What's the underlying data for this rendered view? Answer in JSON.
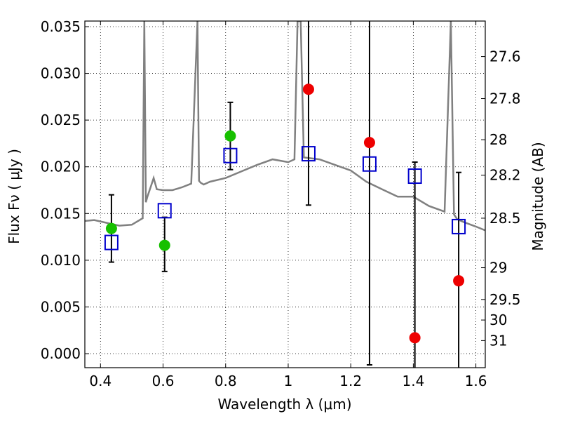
{
  "chart_data": {
    "type": "scatter",
    "xlabel": "Wavelength  λ (μm)",
    "ylabel": "Flux  Fν  ( μJy )",
    "ylabel_right": "Magnitude (AB)",
    "xlim": [
      0.35,
      1.63
    ],
    "ylim": [
      -0.0015,
      0.0356
    ],
    "grid": true,
    "x_ticks": [
      {
        "value": 0.4,
        "label": "0.4"
      },
      {
        "value": 0.6,
        "label": "0.6"
      },
      {
        "value": 0.8,
        "label": "0.8"
      },
      {
        "value": 1.0,
        "label": "1"
      },
      {
        "value": 1.2,
        "label": "1.2"
      },
      {
        "value": 1.4,
        "label": "1.4"
      },
      {
        "value": 1.6,
        "label": "1.6"
      }
    ],
    "y_ticks": [
      {
        "value": 0.0,
        "label": "0.000"
      },
      {
        "value": 0.005,
        "label": "0.005"
      },
      {
        "value": 0.01,
        "label": "0.010"
      },
      {
        "value": 0.015,
        "label": "0.015"
      },
      {
        "value": 0.02,
        "label": "0.020"
      },
      {
        "value": 0.025,
        "label": "0.025"
      },
      {
        "value": 0.03,
        "label": "0.030"
      },
      {
        "value": 0.035,
        "label": "0.035"
      }
    ],
    "mag_ticks": [
      {
        "flux": 0.0318,
        "label": "27.6"
      },
      {
        "flux": 0.0273,
        "label": "27.8"
      },
      {
        "flux": 0.0229,
        "label": "28"
      },
      {
        "flux": 0.0191,
        "label": "28.2"
      },
      {
        "flux": 0.0145,
        "label": "28.5"
      },
      {
        "flux": 0.0092,
        "label": "29"
      },
      {
        "flux": 0.0058,
        "label": "29.5"
      },
      {
        "flux": 0.0036,
        "label": "30"
      },
      {
        "flux": 0.0014,
        "label": "31"
      }
    ],
    "series": [
      {
        "style": "green-circle",
        "x": [
          0.435,
          0.605,
          0.815
        ],
        "y": [
          0.0134,
          0.0116,
          0.0233
        ]
      },
      {
        "style": "red-circle",
        "x": [
          1.065,
          1.26,
          1.405,
          1.545
        ],
        "y": [
          0.0283,
          0.0226,
          0.0017,
          0.0078
        ]
      },
      {
        "style": "blue-open-square",
        "x": [
          0.435,
          0.605,
          0.815,
          1.065,
          1.26,
          1.405,
          1.545
        ],
        "y": [
          0.0119,
          0.0153,
          0.0212,
          0.0214,
          0.0203,
          0.019,
          0.0136
        ]
      }
    ],
    "error_bars": [
      {
        "x": 0.435,
        "low": 0.0098,
        "high": 0.017
      },
      {
        "x": 0.605,
        "low": 0.0088,
        "high": 0.0146
      },
      {
        "x": 0.815,
        "low": 0.0197,
        "high": 0.0269
      },
      {
        "x": 1.065,
        "low": 0.0159,
        "high": 0.0356
      },
      {
        "x": 1.26,
        "low": -0.0012,
        "high": 0.0356
      },
      {
        "x": 1.405,
        "low": -0.0015,
        "high": 0.0205
      },
      {
        "x": 1.545,
        "low": -0.0015,
        "high": 0.0194
      }
    ],
    "spectrum": {
      "color": "#808080",
      "x": [
        0.35,
        0.38,
        0.42,
        0.46,
        0.5,
        0.535,
        0.54,
        0.545,
        0.55,
        0.56,
        0.57,
        0.58,
        0.6,
        0.63,
        0.66,
        0.69,
        0.71,
        0.715,
        0.72,
        0.73,
        0.75,
        0.8,
        0.85,
        0.9,
        0.95,
        1.0,
        1.02,
        1.03,
        1.04,
        1.05,
        1.1,
        1.15,
        1.2,
        1.25,
        1.3,
        1.35,
        1.4,
        1.45,
        1.5,
        1.52,
        1.53,
        1.54,
        1.56,
        1.6,
        1.63
      ],
      "y": [
        0.0142,
        0.0143,
        0.014,
        0.0137,
        0.0138,
        0.0145,
        0.0356,
        0.0162,
        0.0168,
        0.0178,
        0.0188,
        0.0176,
        0.0175,
        0.0175,
        0.0178,
        0.0182,
        0.0356,
        0.0185,
        0.0183,
        0.0181,
        0.0184,
        0.0188,
        0.0195,
        0.0202,
        0.0208,
        0.0205,
        0.0208,
        0.0356,
        0.0356,
        0.021,
        0.0208,
        0.0202,
        0.0196,
        0.0184,
        0.0176,
        0.0168,
        0.0168,
        0.0158,
        0.0152,
        0.0356,
        0.0149,
        0.0144,
        0.0141,
        0.0136,
        0.0132
      ]
    }
  }
}
